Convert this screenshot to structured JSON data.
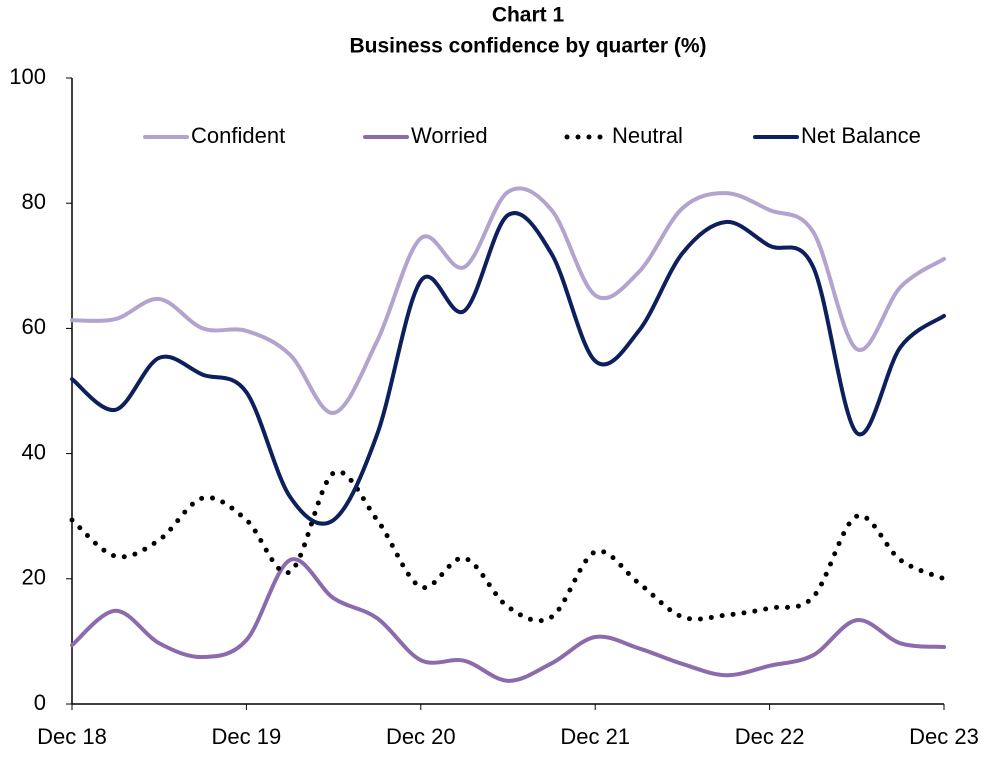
{
  "chart_data": {
    "type": "line",
    "title": "Chart 1",
    "subtitle": "Business confidence by quarter (%)",
    "categories": [
      "Dec 18",
      null,
      null,
      null,
      "Dec 19",
      null,
      null,
      null,
      "Dec 20",
      null,
      null,
      null,
      "Dec 21",
      null,
      null,
      null,
      "Dec 22",
      null,
      null,
      null,
      "Dec 23"
    ],
    "series": [
      {
        "name": "Confident",
        "color": "#b3a3cf",
        "values": [
          61.3,
          61.5,
          64.7,
          60,
          59.6,
          55.8,
          46.5,
          58,
          74.4,
          69.8,
          81.8,
          78.9,
          65.3,
          69,
          79.2,
          81.6,
          78.9,
          75.4,
          56.7,
          66.6,
          71.1
        ]
      },
      {
        "name": "Worried",
        "color": "#8b6bab",
        "values": [
          9.4,
          14.9,
          9.7,
          7.5,
          10.2,
          23,
          16.9,
          13.7,
          7,
          6.9,
          3.7,
          6.5,
          10.7,
          8.9,
          6.4,
          4.6,
          6.1,
          7.8,
          13.4,
          9.7,
          9.1
        ]
      },
      {
        "name": "Neutral",
        "color": "#000000",
        "dotted": true,
        "values": [
          29.4,
          23.6,
          26.2,
          32.9,
          29.4,
          21.1,
          36.9,
          29.4,
          18.7,
          23.3,
          15.5,
          13.9,
          24.3,
          19.3,
          13.9,
          14.2,
          15.3,
          17.1,
          30,
          23,
          20
        ]
      },
      {
        "name": "Net Balance",
        "color": "#0d1f5c",
        "values": [
          51.9,
          47,
          55.3,
          52.6,
          49.8,
          33.1,
          29.4,
          43.1,
          67.6,
          62.8,
          78.1,
          71.9,
          54.8,
          59.6,
          72,
          77,
          73.2,
          69.8,
          43.3,
          57,
          62
        ]
      }
    ],
    "ylim": [
      0,
      100
    ],
    "yticks": [
      0,
      20,
      40,
      60,
      80,
      100
    ],
    "grid": false,
    "smooth": true,
    "legend": "top"
  }
}
